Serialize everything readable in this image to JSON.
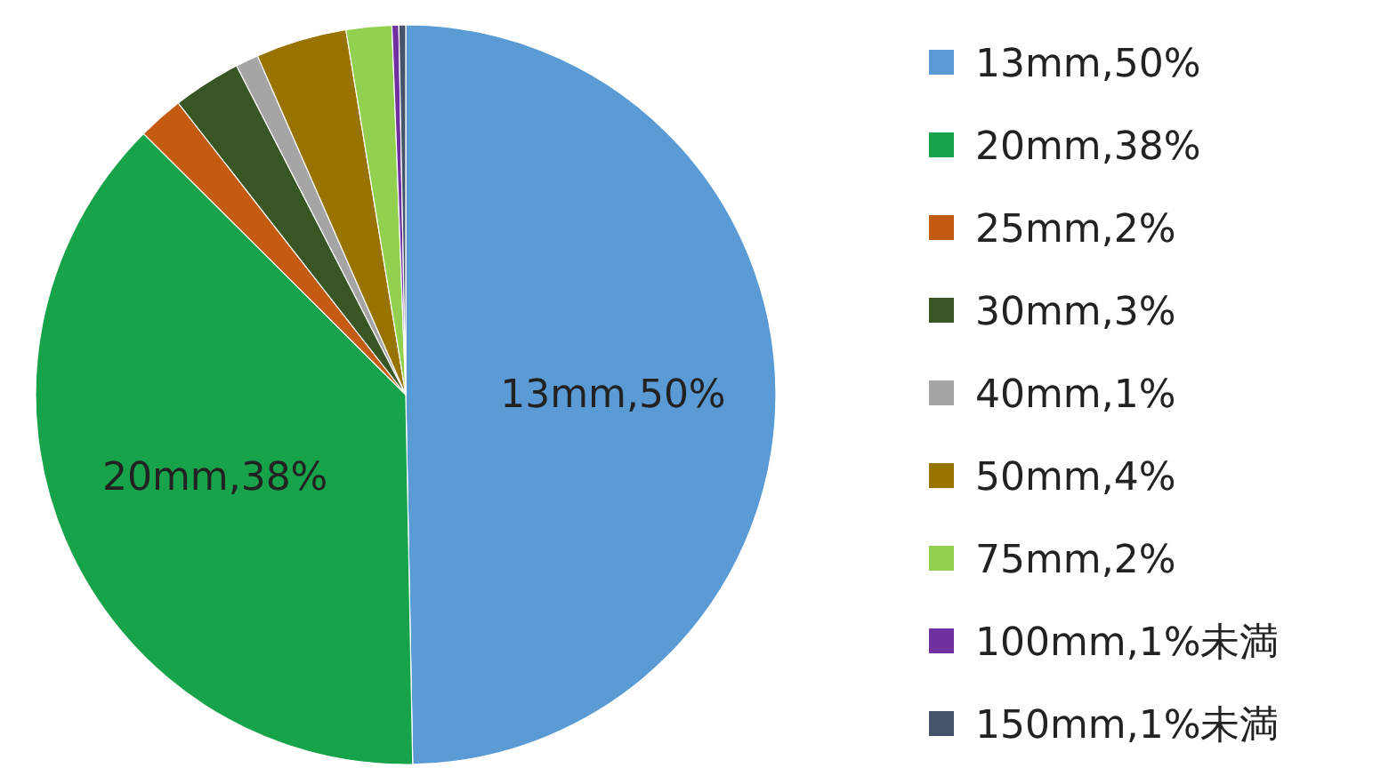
{
  "chart_data": {
    "type": "pie",
    "legend": "right",
    "categories": [
      "13mm,50%",
      "20mm,38%",
      "25mm,2%",
      "30mm,3%",
      "40mm,1%",
      "50mm,4%",
      "75mm,2%",
      "100mm,1%未満",
      "150mm,1%未満"
    ],
    "values": [
      50,
      38,
      2,
      3,
      1,
      4,
      2,
      0.3,
      0.3
    ],
    "colors": [
      "#5b9bd5",
      "#17a34a",
      "#c55a11",
      "#375623",
      "#a5a5a5",
      "#997300",
      "#92d050",
      "#7030a0",
      "#44546a"
    ],
    "value_labels": [
      "13mm,50%",
      "20mm,38%",
      null,
      null,
      null,
      null,
      null,
      null,
      null
    ]
  }
}
